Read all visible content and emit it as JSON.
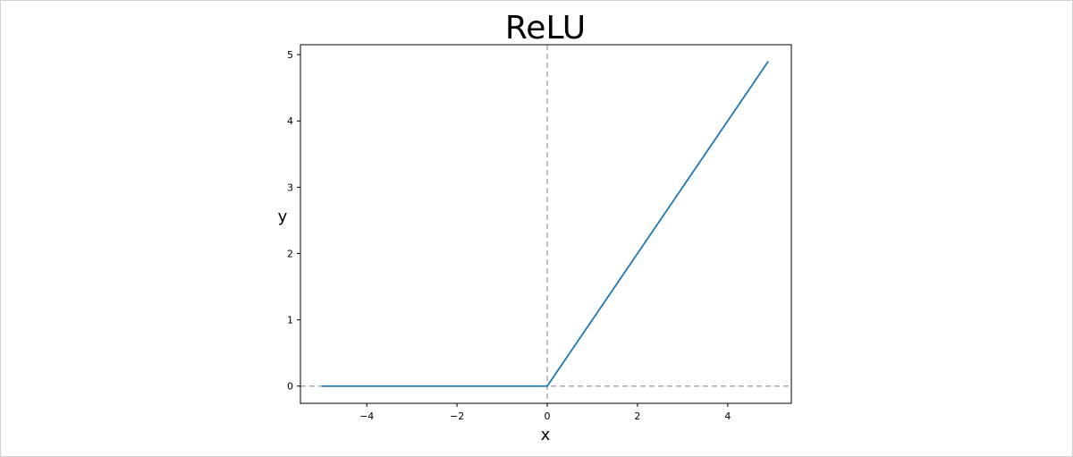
{
  "chart_data": {
    "type": "line",
    "title": "ReLU",
    "xlabel": "x",
    "ylabel": "y",
    "xlim": [
      -5.47,
      5.41
    ],
    "ylim": [
      -0.26,
      5.15
    ],
    "xticks": [
      -4,
      -2,
      0,
      2,
      4
    ],
    "xtick_labels": [
      "−4",
      "−2",
      "0",
      "2",
      "4"
    ],
    "yticks": [
      0,
      1,
      2,
      3,
      4,
      5
    ],
    "ytick_labels": [
      "0",
      "1",
      "2",
      "3",
      "4",
      "5"
    ],
    "grid": false,
    "reference_lines": [
      {
        "orientation": "vertical",
        "value": 0,
        "style": "dashed",
        "color": "#aaaaaa"
      },
      {
        "orientation": "horizontal",
        "value": 0,
        "style": "dashed",
        "color": "#aaaaaa"
      }
    ],
    "series": [
      {
        "x": [
          -5,
          0,
          4.9
        ],
        "values": [
          0,
          0,
          4.9
        ],
        "color": "#1f77b4"
      }
    ]
  }
}
